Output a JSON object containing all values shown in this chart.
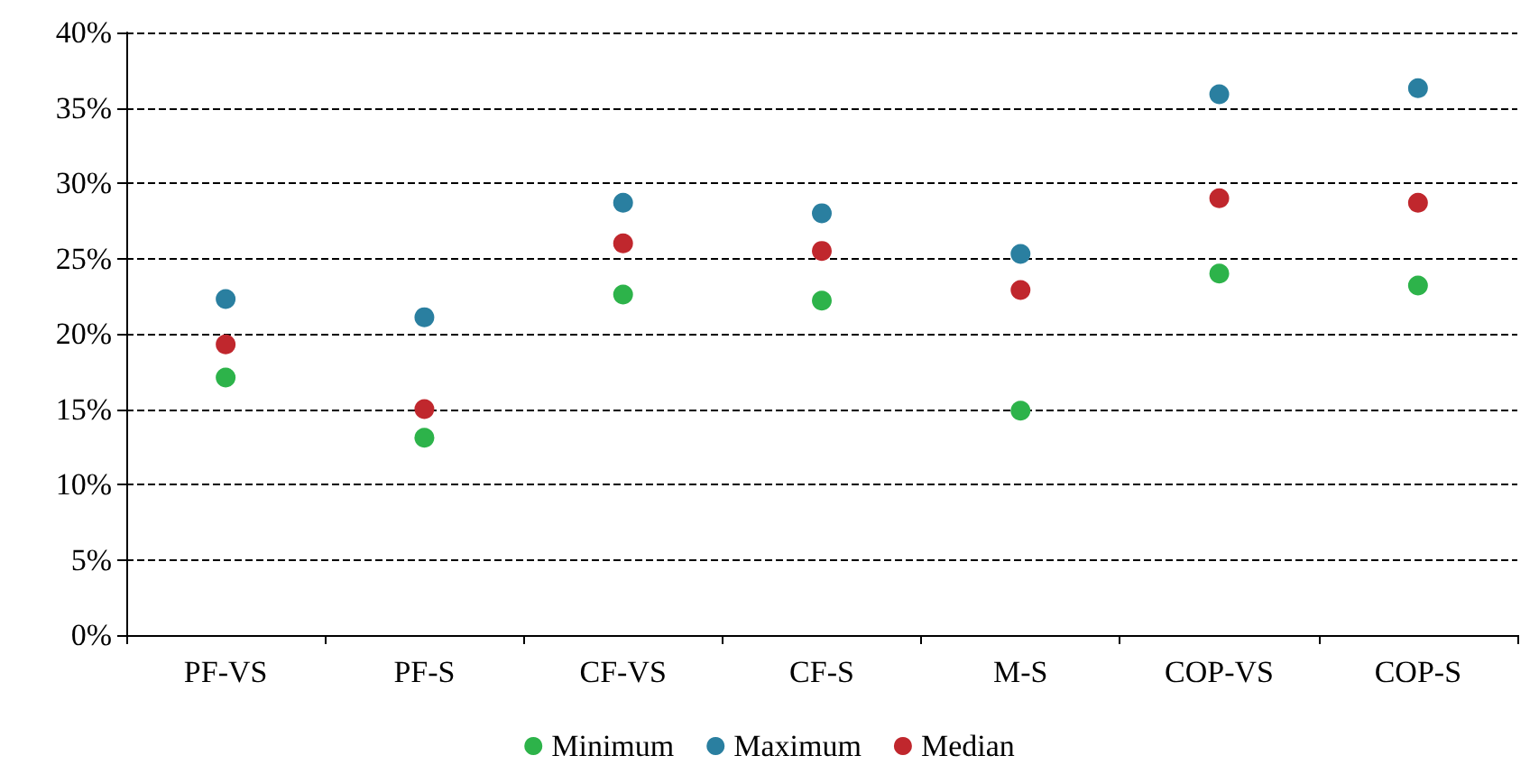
{
  "chart_data": {
    "type": "scatter",
    "categories": [
      "PF-VS",
      "PF-S",
      "CF-VS",
      "CF-S",
      "M-S",
      "COP-VS",
      "COP-S"
    ],
    "series": [
      {
        "name": "Minimum",
        "color": "#2db34a",
        "values": [
          17.1,
          13.1,
          22.6,
          22.2,
          14.9,
          24.0,
          23.2
        ]
      },
      {
        "name": "Maximum",
        "color": "#2a7fa0",
        "values": [
          22.3,
          21.1,
          28.7,
          28.0,
          25.3,
          35.9,
          36.3
        ]
      },
      {
        "name": "Median",
        "color": "#c0272d",
        "values": [
          19.3,
          15.0,
          26.0,
          25.5,
          22.9,
          29.0,
          28.7
        ]
      }
    ],
    "ylim": [
      0,
      40
    ],
    "yticks": [
      {
        "value": 0,
        "label": "0%"
      },
      {
        "value": 5,
        "label": "5%"
      },
      {
        "value": 10,
        "label": "10%"
      },
      {
        "value": 15,
        "label": "15%"
      },
      {
        "value": 20,
        "label": "20%"
      },
      {
        "value": 25,
        "label": "25%"
      },
      {
        "value": 30,
        "label": "30%"
      },
      {
        "value": 35,
        "label": "35%"
      },
      {
        "value": 40,
        "label": "40%"
      }
    ],
    "grid": "y",
    "legend": "bottom",
    "marker": "circle"
  }
}
